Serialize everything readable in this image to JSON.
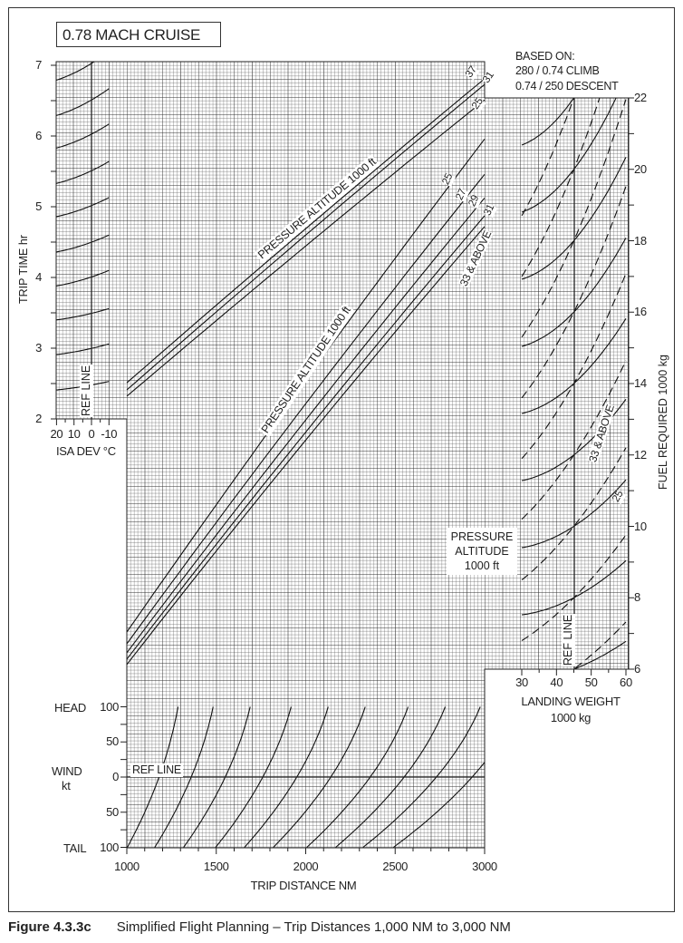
{
  "chart_data": {
    "type": "line",
    "title": "0.78 MACH CRUISE",
    "basis": [
      "BASED ON:",
      "280 / 0.74 CLIMB",
      "0.74 / 250 DESCENT"
    ],
    "caption": {
      "number": "Figure 4.3.3c",
      "text": "Simplified Flight Planning – Trip Distances 1,000 NM to 3,000 NM"
    },
    "trip_time_axis": {
      "label": "TRIP TIME  hr",
      "ticks": [
        2,
        3,
        4,
        5,
        6,
        7
      ],
      "range": [
        2,
        7
      ]
    },
    "fuel_axis": {
      "label": "FUEL REQUIRED  1000 kg",
      "ticks": [
        6,
        8,
        10,
        12,
        14,
        16,
        18,
        20,
        22
      ],
      "range": [
        6,
        22
      ]
    },
    "distance_axis": {
      "label": "TRIP DISTANCE  NM",
      "ticks": [
        1000,
        1500,
        2000,
        2500,
        3000
      ],
      "range": [
        1000,
        3000
      ]
    },
    "isa_axis": {
      "label": "ISA DEV °C",
      "ticks": [
        20,
        10,
        0,
        -10
      ],
      "range": [
        20,
        -10
      ],
      "ref_line": 0,
      "ref_label": "REF LINE"
    },
    "landing_weight_axis": {
      "label": "LANDING WEIGHT",
      "unit": "1000 kg",
      "ticks": [
        30,
        40,
        50,
        60
      ],
      "range": [
        30,
        60
      ],
      "ref_line": 45,
      "ref_label": "REF LINE"
    },
    "wind_axis": {
      "label": "WIND",
      "unit": "kt",
      "head_label": "HEAD",
      "tail_label": "TAIL",
      "tick_labels": [
        "100",
        "50",
        "0",
        "50",
        "100"
      ],
      "range": [
        -100,
        100
      ],
      "ref_line": 0,
      "ref_label": "REF LINE"
    },
    "isa_curves": [
      {
        "time_at_plus20": 6.79,
        "time_at_minus10": 7.2
      },
      {
        "time_at_plus20": 6.29,
        "time_at_minus10": 6.67
      },
      {
        "time_at_plus20": 5.83,
        "time_at_minus10": 6.17
      },
      {
        "time_at_plus20": 5.33,
        "time_at_minus10": 5.64
      },
      {
        "time_at_plus20": 4.86,
        "time_at_minus10": 5.13
      },
      {
        "time_at_plus20": 4.36,
        "time_at_minus10": 4.6
      },
      {
        "time_at_plus20": 3.88,
        "time_at_minus10": 4.1
      },
      {
        "time_at_plus20": 3.4,
        "time_at_minus10": 3.56
      },
      {
        "time_at_plus20": 2.91,
        "time_at_minus10": 3.06
      },
      {
        "time_at_plus20": 2.41,
        "time_at_minus10": 2.53
      }
    ],
    "time_lines": {
      "label": "PRESSURE ALTITUDE  1000 ft",
      "series": [
        {
          "name": "37",
          "time_at_1000nm": 2.51,
          "time_at_3000nm": 6.81
        },
        {
          "name": "31",
          "time_at_1000nm": 2.41,
          "time_at_3000nm": 6.73
        },
        {
          "name": "25",
          "time_at_1000nm": 2.32,
          "time_at_3000nm": 6.51
        }
      ]
    },
    "fuel_lines": {
      "label": "PRESSURE ALTITUDE  1000 ft",
      "series": [
        {
          "name": "25",
          "fuel_at_1000nm": 7.04,
          "fuel_at_3000nm": 20.85
        },
        {
          "name": "27",
          "fuel_at_1000nm": 6.71,
          "fuel_at_3000nm": 19.86
        },
        {
          "name": "29",
          "fuel_at_1000nm": 6.46,
          "fuel_at_3000nm": 19.2
        },
        {
          "name": "31",
          "fuel_at_1000nm": 6.28,
          "fuel_at_3000nm": 18.7
        },
        {
          "name": "33 & ABOVE",
          "fuel_at_1000nm": 6.13,
          "fuel_at_3000nm": 18.4
        }
      ]
    },
    "weight_correction": {
      "label_lines": [
        "PRESSURE",
        "ALTITUDE",
        "1000 ft"
      ],
      "ref_fuel_values": [
        6,
        8,
        10,
        12,
        14,
        16,
        18,
        20,
        22
      ],
      "series": [
        {
          "name": "25",
          "style": "solid",
          "factor_at_30t": 0.94,
          "factor_at_60t": 1.13
        },
        {
          "name": "33 & ABOVE",
          "style": "dashed",
          "factor_at_30t": 0.85,
          "factor_at_60t": 1.22
        }
      ]
    },
    "wind_curves": {
      "distance_at_zero_wind": [
        1180,
        1360,
        1550,
        1760,
        1950,
        2140,
        2360,
        2550,
        2730,
        2930
      ],
      "factor_at_head100": 1.09,
      "factor_at_tail100": 0.85
    },
    "grid": true,
    "colors": {
      "grid": "#555555",
      "lines": "#111111",
      "background": "#ffffff"
    }
  }
}
